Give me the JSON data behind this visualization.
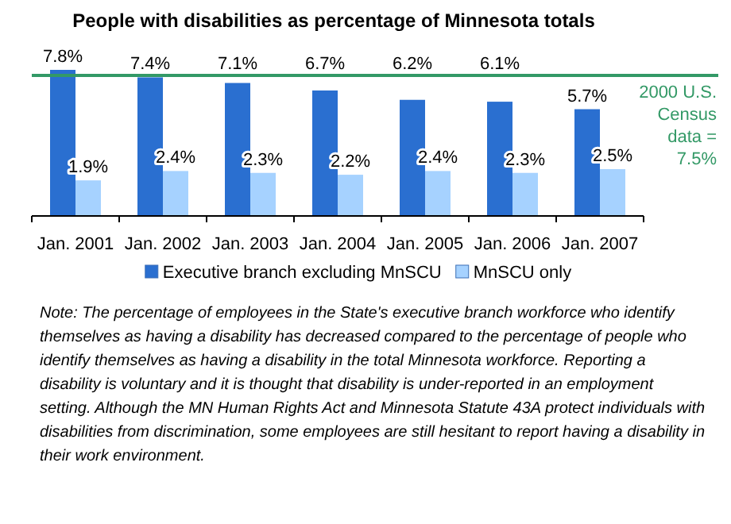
{
  "chart_data": {
    "type": "bar",
    "title": "People with disabilities as percentage of Minnesota totals",
    "categories": [
      "Jan. 2001",
      "Jan. 2002",
      "Jan. 2003",
      "Jan. 2004",
      "Jan. 2005",
      "Jan. 2006",
      "Jan. 2007"
    ],
    "series": [
      {
        "name": "Executive branch excluding MnSCU",
        "color": "#2a6fd0",
        "values": [
          7.8,
          7.4,
          7.1,
          6.7,
          6.2,
          6.1,
          5.7
        ],
        "value_labels": [
          "7.8%",
          "7.4%",
          "7.1%",
          "6.7%",
          "6.2%",
          "6.1%",
          "5.7%"
        ]
      },
      {
        "name": "MnSCU only",
        "color": "#a6d2ff",
        "values": [
          1.9,
          2.4,
          2.3,
          2.2,
          2.4,
          2.3,
          2.5
        ],
        "value_labels": [
          "1.9%",
          "2.4%",
          "2.3%",
          "2.2%",
          "2.4%",
          "2.3%",
          "2.5%"
        ]
      }
    ],
    "ref_lines": [
      {
        "axis": "y",
        "value": 7.5,
        "label": "2000 U.S. Census data = 7.5%",
        "color": "#339966"
      }
    ],
    "legend": "bottom",
    "annotations": [
      "Note: The percentage of employees in the State's executive branch workforce who identify themselves as having a disability has decreased compared to the percentage of people who identify themselves as having a disability in the total Minnesota workforce. Reporting a disability is voluntary and it is thought that disability is under-reported in an employment setting. Although the MN Human Rights Act and Minnesota Statute 43A protect individuals with disabilities from discrimination, some employees are still hesitant to report having a disability in their work environment."
    ]
  }
}
